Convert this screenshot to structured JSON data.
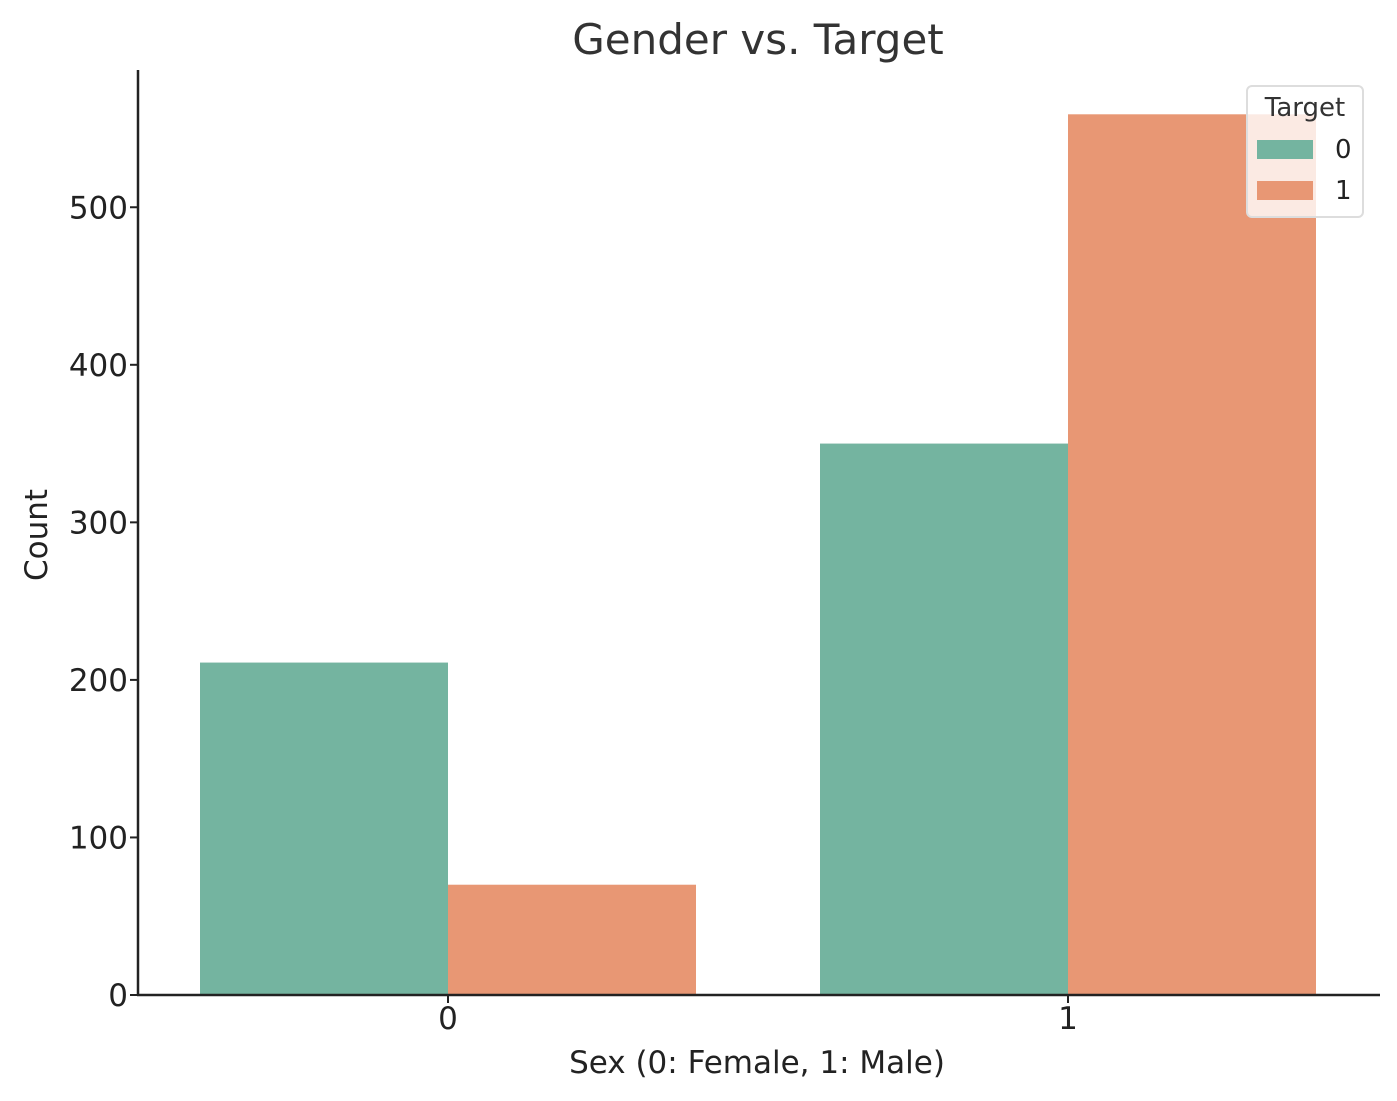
{
  "chart_data": {
    "type": "bar",
    "title": "Gender vs. Target",
    "xlabel": "Sex (0: Female, 1: Male)",
    "ylabel": "Count",
    "categories": [
      "0",
      "1"
    ],
    "series": [
      {
        "name": "0",
        "values": [
          211,
          350
        ],
        "color": "#74b4a0"
      },
      {
        "name": "1",
        "values": [
          70,
          559
        ],
        "color": "#e89774"
      }
    ],
    "ylim": [
      0,
      588
    ],
    "yticks": [
      0,
      100,
      200,
      300,
      400,
      500
    ],
    "legend": {
      "title": "Target",
      "placement": "top-right"
    },
    "grid": false
  }
}
